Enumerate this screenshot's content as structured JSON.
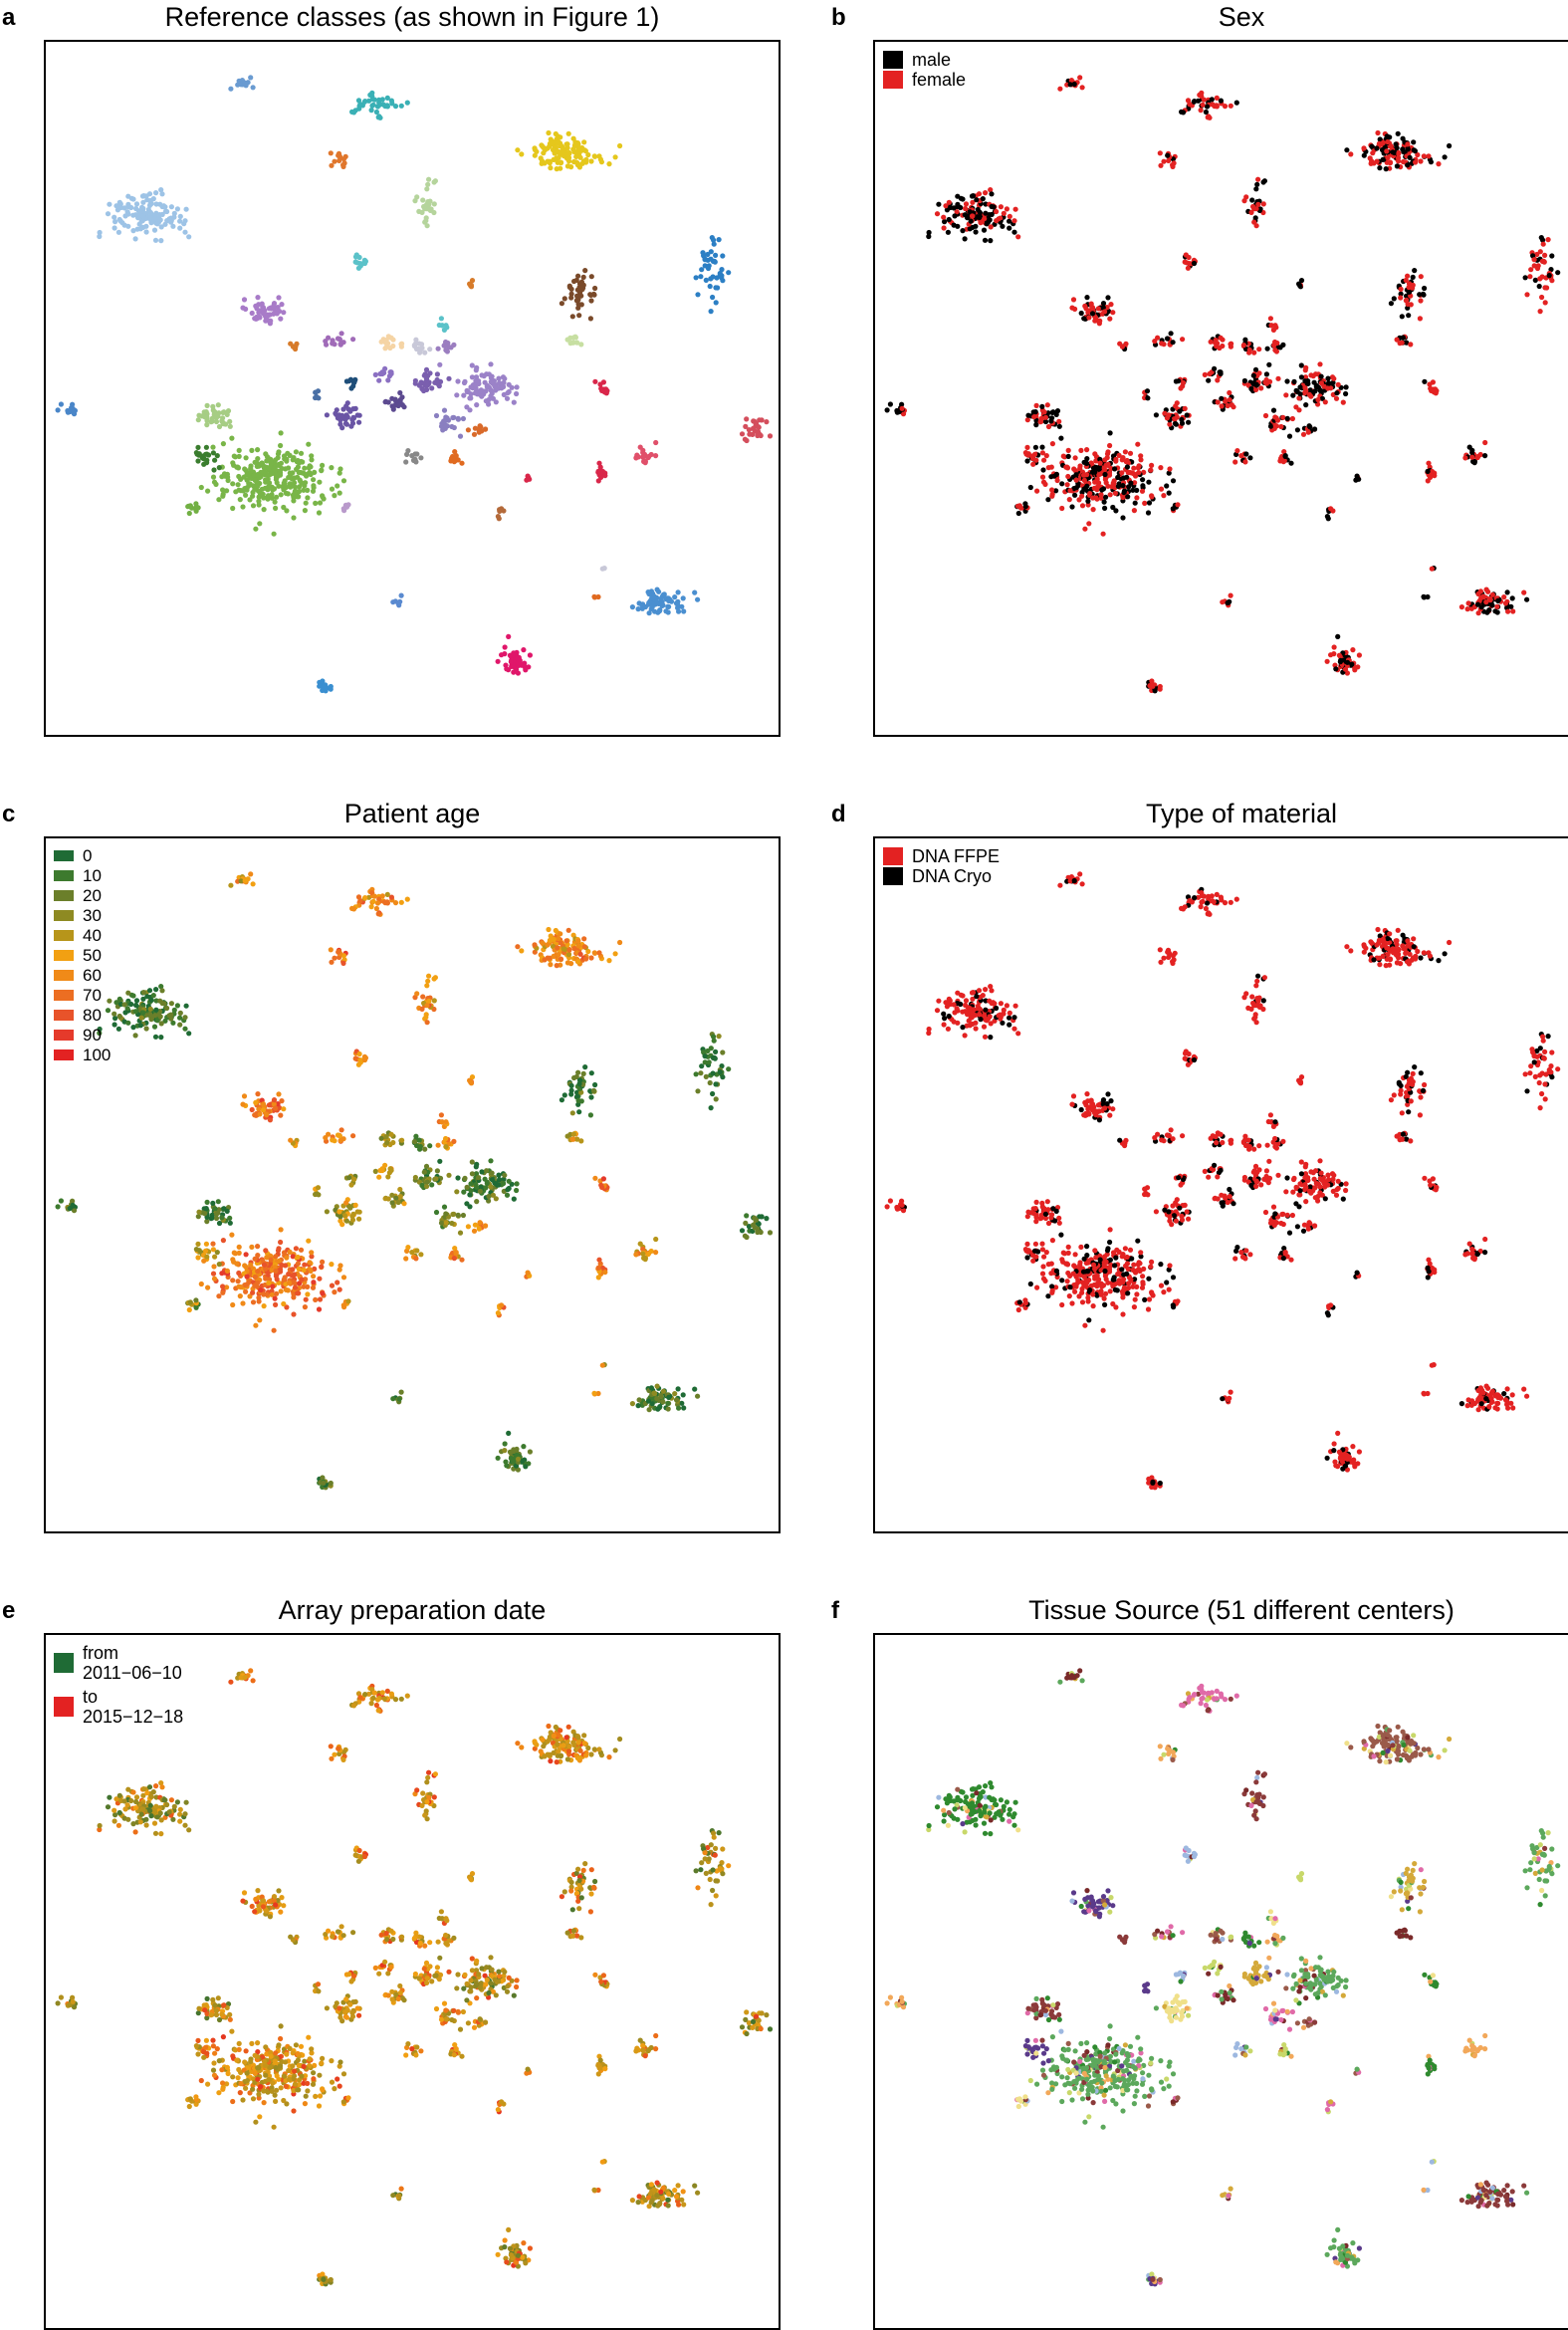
{
  "chart_data": [
    {
      "panel": "a",
      "type": "scatter",
      "title": "Reference classes (as shown in Figure 1)",
      "xlabel": "",
      "ylabel": "",
      "xlim": [
        0,
        100
      ],
      "ylim": [
        0,
        100
      ],
      "color_mode": "cluster",
      "legend": null
    },
    {
      "panel": "b",
      "type": "scatter",
      "title": "Sex",
      "xlabel": "",
      "ylabel": "",
      "xlim": [
        0,
        100
      ],
      "ylim": [
        0,
        100
      ],
      "color_mode": "binary",
      "legend_position": "top-left",
      "legend": [
        {
          "label": "male",
          "color": "#000000"
        },
        {
          "label": "female",
          "color": "#e32222"
        }
      ],
      "mix": 0.45
    },
    {
      "panel": "c",
      "type": "scatter",
      "title": "Patient age",
      "xlabel": "",
      "ylabel": "",
      "xlim": [
        0,
        100
      ],
      "ylim": [
        0,
        100
      ],
      "color_mode": "age",
      "legend_position": "top-left",
      "legend": [
        {
          "label": "0",
          "color": "#1f6b35"
        },
        {
          "label": "10",
          "color": "#3d7a2e"
        },
        {
          "label": "20",
          "color": "#6b7f2a"
        },
        {
          "label": "30",
          "color": "#8e8a22"
        },
        {
          "label": "40",
          "color": "#b7951a"
        },
        {
          "label": "50",
          "color": "#f2a012"
        },
        {
          "label": "60",
          "color": "#f08a18"
        },
        {
          "label": "70",
          "color": "#ec6e22"
        },
        {
          "label": "80",
          "color": "#e8532a"
        },
        {
          "label": "90",
          "color": "#e53a2b"
        },
        {
          "label": "100",
          "color": "#e32222"
        }
      ]
    },
    {
      "panel": "d",
      "type": "scatter",
      "title": "Type of material",
      "xlabel": "",
      "ylabel": "",
      "xlim": [
        0,
        100
      ],
      "ylim": [
        0,
        100
      ],
      "color_mode": "binary",
      "legend_position": "top-left",
      "legend": [
        {
          "label": "DNA FFPE",
          "color": "#e32222"
        },
        {
          "label": "DNA Cryo",
          "color": "#000000"
        }
      ],
      "mix": 0.25
    },
    {
      "panel": "e",
      "type": "scatter",
      "title": "Array preparation date",
      "xlabel": "",
      "ylabel": "",
      "xlim": [
        0,
        100
      ],
      "ylim": [
        0,
        100
      ],
      "color_mode": "date",
      "legend_position": "top-left",
      "legend": [
        {
          "label": "from",
          "label2": "2011−06−10",
          "color": "#1f6b35"
        },
        {
          "label": "to",
          "label2": "2015−12−18",
          "color": "#e32222"
        }
      ]
    },
    {
      "panel": "f",
      "type": "scatter",
      "title": "Tissue Source (51 different centers)",
      "xlabel": "",
      "ylabel": "",
      "xlim": [
        0,
        100
      ],
      "ylim": [
        0,
        100
      ],
      "color_mode": "source",
      "legend": null
    }
  ],
  "clusters": [
    {
      "x": 27,
      "y": 94,
      "w": 1.2,
      "h": 1.0,
      "n": 14,
      "color": "#6a9bd1",
      "age": 0.5
    },
    {
      "x": 45,
      "y": 91,
      "w": 3.5,
      "h": 1.5,
      "n": 40,
      "color": "#3ab0b5",
      "age": 0.6
    },
    {
      "x": 71,
      "y": 84,
      "w": 4.2,
      "h": 2.6,
      "n": 120,
      "color": "#e5c71c",
      "age": 0.6
    },
    {
      "x": 14,
      "y": 75,
      "w": 5.2,
      "h": 2.8,
      "n": 130,
      "color": "#9dc3e6",
      "age": 0.1
    },
    {
      "x": 40,
      "y": 83,
      "w": 1.0,
      "h": 1.0,
      "n": 14,
      "color": "#e0762c",
      "age": 0.7
    },
    {
      "x": 52,
      "y": 76,
      "w": 1.5,
      "h": 3.5,
      "n": 26,
      "color": "#b5d49c",
      "age": 0.6
    },
    {
      "x": 43,
      "y": 68,
      "w": 0.9,
      "h": 0.9,
      "n": 12,
      "color": "#5bc2c9",
      "age": 0.6
    },
    {
      "x": 58,
      "y": 65,
      "w": 0.5,
      "h": 0.5,
      "n": 5,
      "color": "#d77b2a",
      "age": 0.6
    },
    {
      "x": 73,
      "y": 64,
      "w": 2.0,
      "h": 2.6,
      "n": 40,
      "color": "#7a4a2a",
      "age": 0.1
    },
    {
      "x": 91,
      "y": 67,
      "w": 1.5,
      "h": 3.8,
      "n": 42,
      "color": "#2c7fc4",
      "age": 0.1
    },
    {
      "x": 30,
      "y": 61,
      "w": 2.4,
      "h": 2.0,
      "n": 50,
      "color": "#a87bc8",
      "age": 0.7
    },
    {
      "x": 54,
      "y": 59,
      "w": 0.7,
      "h": 0.7,
      "n": 7,
      "color": "#5bc2c9",
      "age": 0.6
    },
    {
      "x": 72,
      "y": 57,
      "w": 0.9,
      "h": 0.8,
      "n": 10,
      "color": "#c7dfa2",
      "age": 0.5
    },
    {
      "x": 40,
      "y": 57,
      "w": 1.4,
      "h": 1.0,
      "n": 14,
      "color": "#a06bb8",
      "age": 0.6
    },
    {
      "x": 47,
      "y": 57,
      "w": 1.5,
      "h": 1.2,
      "n": 18,
      "color": "#f5d4a5",
      "age": 0.3
    },
    {
      "x": 51,
      "y": 56,
      "w": 1.2,
      "h": 1.0,
      "n": 14,
      "color": "#c8c8d8",
      "age": 0.2
    },
    {
      "x": 55,
      "y": 56,
      "w": 1.2,
      "h": 0.9,
      "n": 12,
      "color": "#9b7ec0",
      "age": 0.6
    },
    {
      "x": 34,
      "y": 56,
      "w": 0.6,
      "h": 0.6,
      "n": 6,
      "color": "#d77b2a",
      "age": 0.5
    },
    {
      "x": 42,
      "y": 51,
      "w": 0.7,
      "h": 0.9,
      "n": 9,
      "color": "#1f4e79",
      "age": 0.3
    },
    {
      "x": 46,
      "y": 52,
      "w": 1.3,
      "h": 0.9,
      "n": 12,
      "color": "#8b70c2",
      "age": 0.4
    },
    {
      "x": 52,
      "y": 51,
      "w": 2.0,
      "h": 1.5,
      "n": 30,
      "color": "#7a5fae",
      "age": 0.2
    },
    {
      "x": 60,
      "y": 50,
      "w": 3.5,
      "h": 2.6,
      "n": 90,
      "color": "#9b82c8",
      "age": 0.1
    },
    {
      "x": 37,
      "y": 49,
      "w": 0.7,
      "h": 0.7,
      "n": 6,
      "color": "#4a6fa5",
      "age": 0.3
    },
    {
      "x": 41,
      "y": 46,
      "w": 2.0,
      "h": 1.6,
      "n": 34,
      "color": "#6a55a5",
      "age": 0.4
    },
    {
      "x": 48,
      "y": 48,
      "w": 1.4,
      "h": 1.2,
      "n": 18,
      "color": "#5c4a90",
      "age": 0.3
    },
    {
      "x": 55,
      "y": 45,
      "w": 1.5,
      "h": 1.5,
      "n": 24,
      "color": "#8a7fc0",
      "age": 0.2
    },
    {
      "x": 59,
      "y": 44,
      "w": 1.0,
      "h": 1.0,
      "n": 10,
      "color": "#d96a2a",
      "age": 0.6
    },
    {
      "x": 76,
      "y": 50,
      "w": 0.9,
      "h": 0.9,
      "n": 10,
      "color": "#d9274a",
      "age": 0.7
    },
    {
      "x": 3,
      "y": 47,
      "w": 0.9,
      "h": 0.8,
      "n": 12,
      "color": "#4a86c8",
      "age": 0.1
    },
    {
      "x": 23,
      "y": 46,
      "w": 1.8,
      "h": 1.5,
      "n": 40,
      "color": "#a6cd84",
      "age": 0.1
    },
    {
      "x": 50,
      "y": 40,
      "w": 1.0,
      "h": 1.0,
      "n": 12,
      "color": "#888888",
      "age": 0.5
    },
    {
      "x": 56,
      "y": 40,
      "w": 0.9,
      "h": 0.9,
      "n": 10,
      "color": "#e06a20",
      "age": 0.6
    },
    {
      "x": 97,
      "y": 44,
      "w": 1.4,
      "h": 1.5,
      "n": 26,
      "color": "#d44e5c",
      "age": 0.1
    },
    {
      "x": 31,
      "y": 37,
      "w": 7.0,
      "h": 4.2,
      "n": 280,
      "color": "#79b548",
      "age": 0.7
    },
    {
      "x": 22,
      "y": 40,
      "w": 1.8,
      "h": 1.4,
      "n": 22,
      "color": "#3a7d2e",
      "age": 0.4
    },
    {
      "x": 20,
      "y": 33,
      "w": 0.9,
      "h": 0.9,
      "n": 10,
      "color": "#72b044",
      "age": 0.3
    },
    {
      "x": 41,
      "y": 33,
      "w": 0.6,
      "h": 0.6,
      "n": 7,
      "color": "#b99acb",
      "age": 0.5
    },
    {
      "x": 62,
      "y": 32,
      "w": 0.6,
      "h": 0.6,
      "n": 6,
      "color": "#b46a3a",
      "age": 0.6
    },
    {
      "x": 66,
      "y": 37,
      "w": 0.4,
      "h": 0.4,
      "n": 4,
      "color": "#d9274a",
      "age": 0.6
    },
    {
      "x": 76,
      "y": 38,
      "w": 1.0,
      "h": 1.0,
      "n": 14,
      "color": "#d9274a",
      "age": 0.7
    },
    {
      "x": 82,
      "y": 40,
      "w": 1.3,
      "h": 1.0,
      "n": 18,
      "color": "#e0506a",
      "age": 0.5
    },
    {
      "x": 84,
      "y": 19,
      "w": 3.5,
      "h": 1.7,
      "n": 70,
      "color": "#4a8fd0",
      "age": 0.1
    },
    {
      "x": 75,
      "y": 20,
      "w": 0.3,
      "h": 0.3,
      "n": 3,
      "color": "#e06a20",
      "age": 0.6
    },
    {
      "x": 76,
      "y": 24,
      "w": 0.2,
      "h": 0.2,
      "n": 2,
      "color": "#c8c8d8",
      "age": 0.5
    },
    {
      "x": 48,
      "y": 19,
      "w": 0.7,
      "h": 0.7,
      "n": 8,
      "color": "#5a8ad0",
      "age": 0.1
    },
    {
      "x": 64,
      "y": 11,
      "w": 1.8,
      "h": 1.6,
      "n": 50,
      "color": "#e0176a",
      "age": 0.1
    },
    {
      "x": 38,
      "y": 7,
      "w": 1.0,
      "h": 0.8,
      "n": 14,
      "color": "#3a8fd0",
      "age": 0.1
    }
  ]
}
